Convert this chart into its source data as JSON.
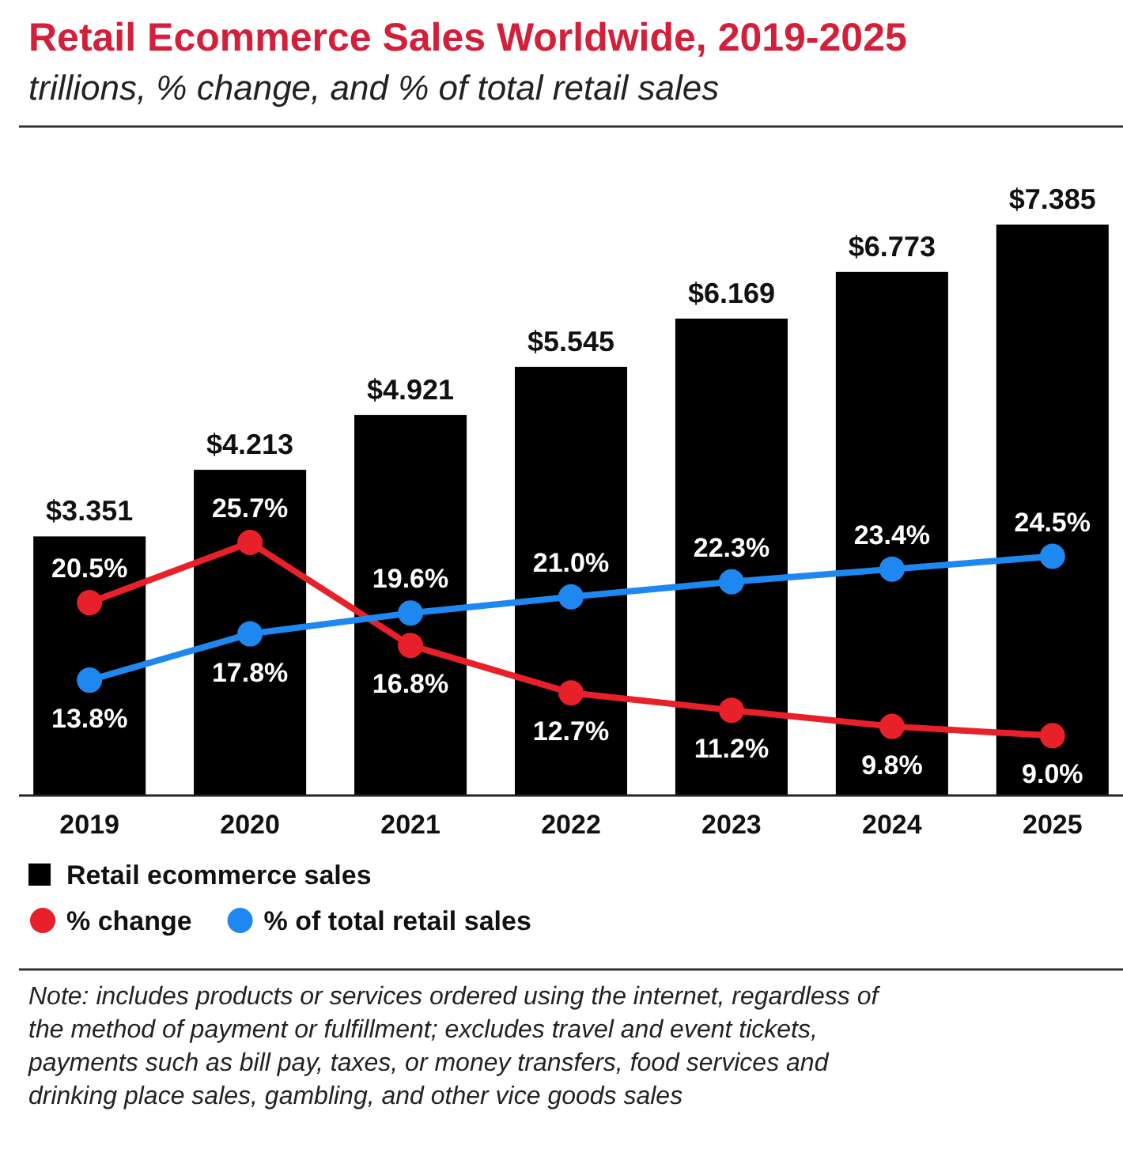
{
  "chart_data": {
    "type": "bar",
    "title": "Retail Ecommerce Sales Worldwide, 2019-2025",
    "subtitle": "trillions, % change, and % of total retail sales",
    "categories": [
      "2019",
      "2020",
      "2021",
      "2022",
      "2023",
      "2024",
      "2025"
    ],
    "series": [
      {
        "name": "Retail ecommerce sales",
        "color": "#000000",
        "values": [
          3.351,
          4.213,
          4.921,
          5.545,
          6.169,
          6.773,
          7.385
        ],
        "value_labels": [
          "$3.351",
          "$4.213",
          "$4.921",
          "$5.545",
          "$6.169",
          "$6.773",
          "$7.385"
        ]
      },
      {
        "name": "% change",
        "type": "line",
        "axis": "y2",
        "color": "#e8202a",
        "values": [
          20.5,
          25.7,
          16.8,
          12.7,
          11.2,
          9.8,
          9.0
        ],
        "value_labels": [
          "20.5%",
          "25.7%",
          "16.8%",
          "12.7%",
          "11.2%",
          "9.8%",
          "9.0%"
        ]
      },
      {
        "name": "% of total retail sales",
        "type": "line",
        "axis": "y2",
        "color": "#1e88f0",
        "values": [
          13.8,
          17.8,
          19.6,
          21.0,
          22.3,
          23.4,
          24.5
        ],
        "value_labels": [
          "13.8%",
          "17.8%",
          "19.6%",
          "21.0%",
          "22.3%",
          "23.4%",
          "24.5%"
        ]
      }
    ],
    "marker": "circle",
    "legend": "bottom",
    "grid": false,
    "annotations": [
      "Note: includes products or services ordered using the internet, regardless of the method of payment or fulfillment; excludes travel and event tickets, payments such as bill pay, taxes, or money transfers, food services and drinking place sales, gambling, and other vice goods sales"
    ]
  }
}
